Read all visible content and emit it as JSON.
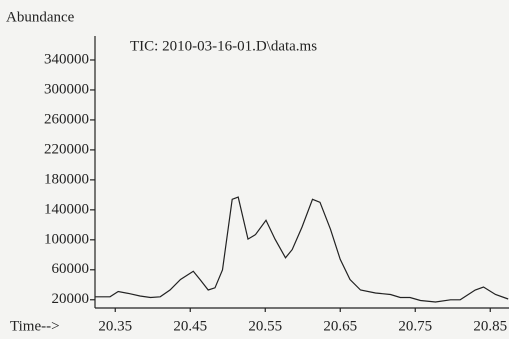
{
  "chart_data": {
    "type": "line",
    "title": "TIC: 2010-03-16-01.D\\data.ms",
    "ylabel": "Abundance",
    "xlabel": "Time-->",
    "color": "#222222",
    "x": [
      20.323,
      20.343,
      20.354,
      20.37,
      20.383,
      20.397,
      20.41,
      20.423,
      20.437,
      20.454,
      20.463,
      20.474,
      20.483,
      20.493,
      20.506,
      20.514,
      20.527,
      20.537,
      20.551,
      20.563,
      20.577,
      20.586,
      20.599,
      20.613,
      20.623,
      20.637,
      20.65,
      20.663,
      20.677,
      20.697,
      20.717,
      20.73,
      20.743,
      20.757,
      20.777,
      20.797,
      20.81,
      20.83,
      20.841,
      20.857,
      20.874
    ],
    "values": [
      24000,
      24000,
      31000,
      28000,
      25000,
      23000,
      24000,
      33000,
      47000,
      58000,
      47000,
      33000,
      36000,
      60000,
      154000,
      157000,
      101000,
      107000,
      126000,
      101000,
      76000,
      87000,
      117000,
      154000,
      150000,
      114000,
      74000,
      47000,
      33000,
      29000,
      27000,
      23000,
      23000,
      19000,
      17000,
      20000,
      20000,
      33000,
      37000,
      27000,
      21000
    ],
    "xlim": [
      20.323,
      20.875
    ],
    "ylim": [
      9000,
      372000
    ],
    "xticks": [
      20.35,
      20.45,
      20.55,
      20.65,
      20.75,
      20.85
    ],
    "yticks": [
      20000,
      60000,
      100000,
      140000,
      180000,
      220000,
      260000,
      300000,
      340000
    ]
  }
}
